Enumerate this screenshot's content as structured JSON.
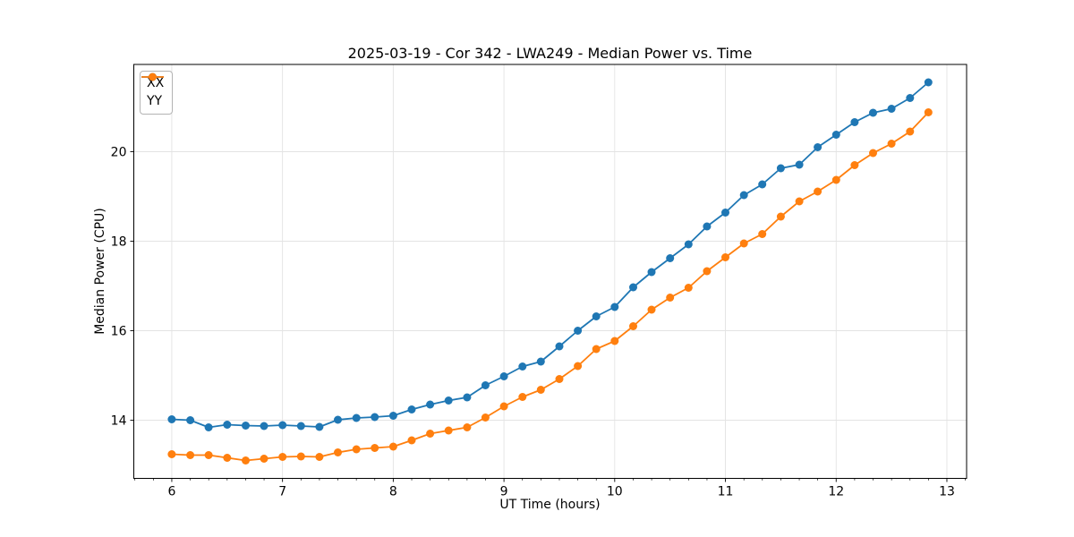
{
  "figure": {
    "background": "#ffffff",
    "text_color": "#000000",
    "grid_color": "#e3e3e3",
    "spine_color": "#000000"
  },
  "chart_data": {
    "type": "line",
    "title": "2025-03-19 - Cor 342 - LWA249 - Median Power vs. Time",
    "xlabel": "UT Time (hours)",
    "ylabel": "Median Power (CPU)",
    "xlim": [
      5.657,
      13.178
    ],
    "ylim": [
      12.7,
      21.95
    ],
    "x_major_ticks": [
      6,
      7,
      8,
      9,
      10,
      11,
      12,
      13
    ],
    "x_tick_labels": [
      "6",
      "7",
      "8",
      "9",
      "10",
      "11",
      "12",
      "13"
    ],
    "y_major_ticks": [
      14,
      16,
      18,
      20
    ],
    "y_tick_labels": [
      "14",
      "16",
      "18",
      "20"
    ],
    "x_minor_step": 0.16667,
    "grid": true,
    "legend_position": "upper left",
    "marker": "circle",
    "x": [
      6.0,
      6.167,
      6.333,
      6.5,
      6.667,
      6.833,
      7.0,
      7.167,
      7.333,
      7.5,
      7.667,
      7.833,
      8.0,
      8.167,
      8.333,
      8.5,
      8.667,
      8.833,
      9.0,
      9.167,
      9.333,
      9.5,
      9.667,
      9.833,
      10.0,
      10.167,
      10.333,
      10.5,
      10.667,
      10.833,
      11.0,
      11.167,
      11.333,
      11.5,
      11.667,
      11.833,
      12.0,
      12.167,
      12.333,
      12.5,
      12.667,
      12.833
    ],
    "series": [
      {
        "name": "XX",
        "color": "#1f77b4",
        "values": [
          14.02,
          14.0,
          13.84,
          13.9,
          13.88,
          13.87,
          13.89,
          13.87,
          13.85,
          14.01,
          14.05,
          14.07,
          14.1,
          14.24,
          14.35,
          14.44,
          14.51,
          14.78,
          14.98,
          15.2,
          15.31,
          15.65,
          16.0,
          16.32,
          16.53,
          16.97,
          17.31,
          17.62,
          17.93,
          18.33,
          18.64,
          19.03,
          19.27,
          19.63,
          19.71,
          20.1,
          20.38,
          20.66,
          20.87,
          20.96,
          21.2,
          21.55
        ]
      },
      {
        "name": "YY",
        "color": "#ff7f0e",
        "values": [
          13.24,
          13.22,
          13.22,
          13.16,
          13.1,
          13.14,
          13.18,
          13.19,
          13.18,
          13.28,
          13.35,
          13.38,
          13.41,
          13.55,
          13.7,
          13.77,
          13.84,
          14.06,
          14.31,
          14.52,
          14.68,
          14.92,
          15.21,
          15.59,
          15.77,
          16.1,
          16.47,
          16.74,
          16.96,
          17.33,
          17.64,
          17.95,
          18.16,
          18.55,
          18.89,
          19.11,
          19.37,
          19.7,
          19.97,
          20.18,
          20.45,
          20.88
        ]
      }
    ]
  }
}
